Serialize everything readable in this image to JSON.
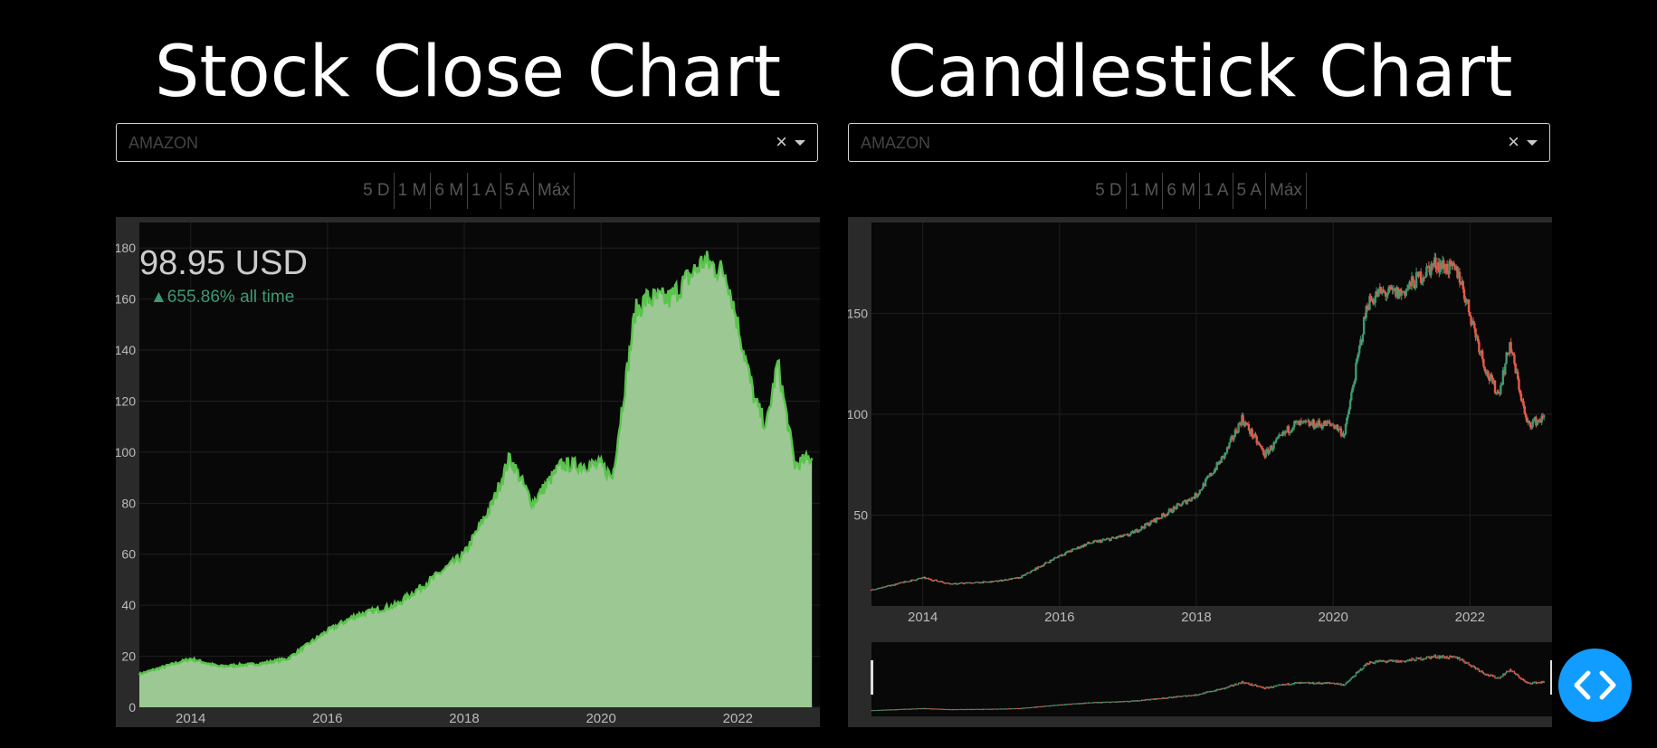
{
  "left_panel": {
    "title": "Stock Close Chart",
    "dropdown": {
      "value": "AMAZON",
      "clear_glyph": "×"
    },
    "range_buttons": [
      "5 D",
      "1 M",
      "6 M",
      "1 A",
      "5 A",
      "Máx"
    ],
    "indicator": {
      "value_text": "98.95 USD",
      "delta_text": "▲655.86% all time"
    }
  },
  "right_panel": {
    "title": "Candlestick Chart",
    "dropdown": {
      "value": "AMAZON",
      "clear_glyph": "×"
    },
    "range_buttons": [
      "5 D",
      "1 M",
      "6 M",
      "1 A",
      "5 A",
      "Máx"
    ]
  },
  "colors": {
    "area_fill": "#9cc893",
    "area_line": "#5ac44d",
    "increasing": "#3d9970",
    "decreasing": "#e8584a",
    "code_button": "#119dff"
  },
  "icons": {
    "code_button": "code-brackets-icon"
  },
  "chart_data": [
    {
      "type": "area",
      "x": [
        "2013-04",
        "2014-01",
        "2014-06",
        "2015-01",
        "2015-06",
        "2016-01",
        "2016-06",
        "2017-01",
        "2017-06",
        "2018-01",
        "2018-06",
        "2018-09",
        "2019-01",
        "2019-06",
        "2020-01",
        "2020-03",
        "2020-07",
        "2020-09",
        "2021-01",
        "2021-07",
        "2021-11",
        "2022-04",
        "2022-06",
        "2022-08",
        "2022-11",
        "2023-02"
      ],
      "values": [
        13,
        19,
        16,
        17,
        19,
        30,
        36,
        40,
        48,
        60,
        80,
        98,
        80,
        95,
        95,
        90,
        155,
        160,
        160,
        175,
        170,
        120,
        110,
        135,
        95,
        98
      ],
      "xticks": [
        "2014",
        "2016",
        "2018",
        "2020",
        "2022"
      ],
      "yticks": [
        0,
        20,
        40,
        60,
        80,
        100,
        120,
        140,
        160,
        180
      ],
      "ylim": [
        0,
        190
      ]
    },
    {
      "type": "candlestick",
      "x": [
        "2013-04",
        "2014-01",
        "2014-06",
        "2015-01",
        "2015-06",
        "2016-01",
        "2016-06",
        "2017-01",
        "2017-06",
        "2018-01",
        "2018-06",
        "2018-09",
        "2019-01",
        "2019-06",
        "2020-01",
        "2020-03",
        "2020-07",
        "2020-09",
        "2021-01",
        "2021-07",
        "2021-11",
        "2022-04",
        "2022-06",
        "2022-08",
        "2022-11",
        "2023-02"
      ],
      "values": [
        13,
        19,
        16,
        17,
        19,
        30,
        36,
        40,
        48,
        60,
        80,
        98,
        80,
        95,
        95,
        90,
        155,
        160,
        160,
        175,
        170,
        120,
        110,
        135,
        95,
        98
      ],
      "xticks": [
        "2014",
        "2016",
        "2018",
        "2020",
        "2022"
      ],
      "yticks": [
        50,
        100,
        150
      ],
      "ylim": [
        5,
        195
      ]
    }
  ]
}
